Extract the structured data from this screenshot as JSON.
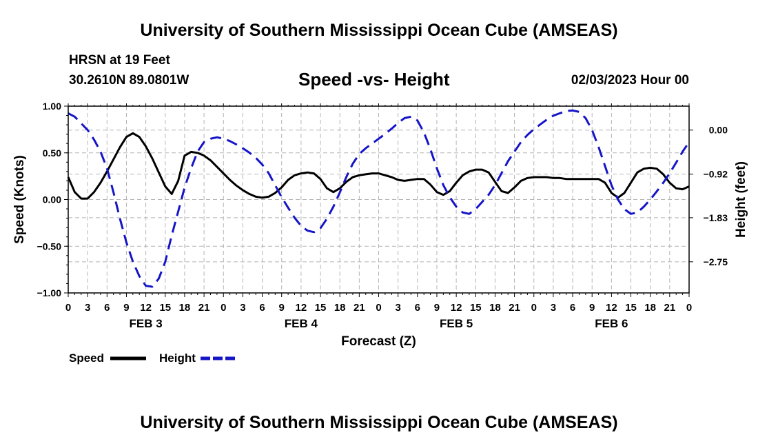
{
  "header": {
    "title": "University of Southern Mississippi Ocean Cube (AMSEAS)",
    "station": "HRSN at 19 Feet",
    "coords": "30.2610N  89.0801W",
    "subtitle": "Speed -vs- Height",
    "run_time": "02/03/2023 Hour 00"
  },
  "footer": {
    "title": "University of Southern Mississippi Ocean Cube (AMSEAS)"
  },
  "chart_data": {
    "type": "line",
    "title": "Speed -vs- Height",
    "xlabel": "Forecast (Z)",
    "ylabel": "Speed (Knots)",
    "y2label": "Height (feet)",
    "x_range": [
      0,
      96
    ],
    "ylim": [
      -1.0,
      1.0
    ],
    "y2lim": [
      -3.4,
      0.5
    ],
    "y_ticks": [
      1.0,
      0.5,
      0.0,
      -0.5,
      -1.0
    ],
    "y_tick_labels": [
      "1.00",
      "0.50",
      "0.00",
      "−0.50",
      "−1.00"
    ],
    "y2_ticks": [
      0.0,
      -0.92,
      -1.83,
      -2.75
    ],
    "y2_tick_labels": [
      "0.00",
      "−0.92",
      "−1.83",
      "−2.75"
    ],
    "x_ticks": [
      0,
      3,
      6,
      9,
      12,
      15,
      18,
      21,
      24,
      27,
      30,
      33,
      36,
      39,
      42,
      45,
      48,
      51,
      54,
      57,
      60,
      63,
      66,
      69,
      72,
      75,
      78,
      81,
      84,
      87,
      90,
      93,
      96
    ],
    "x_tick_labels": [
      "0",
      "3",
      "6",
      "9",
      "12",
      "15",
      "18",
      "21",
      "0",
      "3",
      "6",
      "9",
      "12",
      "15",
      "18",
      "21",
      "0",
      "3",
      "6",
      "9",
      "12",
      "15",
      "18",
      "21",
      "0",
      "3",
      "6",
      "9",
      "12",
      "15",
      "18",
      "21",
      "0"
    ],
    "day_labels": [
      {
        "label": "FEB 3",
        "x": 12
      },
      {
        "label": "FEB 4",
        "x": 36
      },
      {
        "label": "FEB 5",
        "x": 60
      },
      {
        "label": "FEB 6",
        "x": 84
      }
    ],
    "grid": true,
    "legend": "bottom-left",
    "series": [
      {
        "name": "Speed",
        "color": "#000000",
        "style": "solid",
        "axis": "left",
        "x": [
          0,
          1,
          2,
          3,
          4,
          5,
          6,
          7,
          8,
          9,
          10,
          11,
          12,
          13,
          14,
          15,
          16,
          17,
          18,
          19,
          20,
          21,
          22,
          23,
          24,
          25,
          26,
          27,
          28,
          29,
          30,
          31,
          32,
          33,
          34,
          35,
          36,
          37,
          38,
          39,
          40,
          41,
          42,
          43,
          44,
          45,
          46,
          47,
          48,
          49,
          50,
          51,
          52,
          53,
          54,
          55,
          56,
          57,
          58,
          59,
          60,
          61,
          62,
          63,
          64,
          65,
          66,
          67,
          68,
          69,
          70,
          71,
          72,
          73,
          74,
          75,
          76,
          77,
          78,
          79,
          80,
          81,
          82,
          83,
          84,
          85,
          86,
          87,
          88,
          89,
          90,
          91,
          92,
          93,
          94,
          95,
          96
        ],
        "values": [
          0.24,
          0.08,
          0.01,
          0.01,
          0.08,
          0.18,
          0.3,
          0.43,
          0.56,
          0.67,
          0.71,
          0.67,
          0.57,
          0.44,
          0.29,
          0.14,
          0.06,
          0.2,
          0.47,
          0.51,
          0.5,
          0.47,
          0.42,
          0.35,
          0.28,
          0.21,
          0.15,
          0.1,
          0.06,
          0.03,
          0.02,
          0.03,
          0.07,
          0.13,
          0.21,
          0.26,
          0.28,
          0.29,
          0.28,
          0.22,
          0.12,
          0.08,
          0.12,
          0.19,
          0.24,
          0.26,
          0.27,
          0.28,
          0.28,
          0.26,
          0.24,
          0.21,
          0.2,
          0.21,
          0.22,
          0.22,
          0.16,
          0.08,
          0.05,
          0.09,
          0.18,
          0.26,
          0.3,
          0.32,
          0.32,
          0.29,
          0.19,
          0.09,
          0.07,
          0.13,
          0.2,
          0.23,
          0.24,
          0.24,
          0.24,
          0.23,
          0.23,
          0.22,
          0.22,
          0.22,
          0.22,
          0.22,
          0.22,
          0.18,
          0.07,
          0.02,
          0.07,
          0.18,
          0.29,
          0.33,
          0.34,
          0.33,
          0.27,
          0.18,
          0.12,
          0.11,
          0.14
        ]
      },
      {
        "name": "Height",
        "color": "#1515c8",
        "style": "dashed",
        "axis": "right",
        "x": [
          0,
          1,
          2,
          3,
          4,
          5,
          6,
          7,
          8,
          9,
          10,
          11,
          12,
          13,
          14,
          15,
          16,
          17,
          18,
          19,
          20,
          21,
          22,
          23,
          24,
          25,
          26,
          27,
          28,
          29,
          30,
          31,
          32,
          33,
          34,
          35,
          36,
          37,
          38,
          39,
          40,
          41,
          42,
          43,
          44,
          45,
          46,
          47,
          48,
          49,
          50,
          51,
          52,
          53,
          54,
          55,
          56,
          57,
          58,
          59,
          60,
          61,
          62,
          63,
          64,
          65,
          66,
          67,
          68,
          69,
          70,
          71,
          72,
          73,
          74,
          75,
          76,
          77,
          78,
          79,
          80,
          81,
          82,
          83,
          84,
          85,
          86,
          87,
          88,
          89,
          90,
          91,
          92,
          93,
          94,
          95,
          96
        ],
        "values": [
          0.35,
          0.28,
          0.14,
          0.0,
          -0.2,
          -0.45,
          -0.8,
          -1.3,
          -1.85,
          -2.35,
          -2.75,
          -3.05,
          -3.25,
          -3.27,
          -3.1,
          -2.75,
          -2.2,
          -1.7,
          -1.2,
          -0.8,
          -0.45,
          -0.25,
          -0.18,
          -0.15,
          -0.18,
          -0.23,
          -0.3,
          -0.38,
          -0.47,
          -0.58,
          -0.72,
          -0.9,
          -1.15,
          -1.4,
          -1.62,
          -1.83,
          -2.0,
          -2.1,
          -2.13,
          -2.05,
          -1.85,
          -1.6,
          -1.3,
          -0.98,
          -0.7,
          -0.5,
          -0.38,
          -0.28,
          -0.18,
          -0.08,
          0.03,
          0.15,
          0.25,
          0.28,
          0.2,
          -0.05,
          -0.4,
          -0.8,
          -1.15,
          -1.4,
          -1.6,
          -1.72,
          -1.75,
          -1.65,
          -1.5,
          -1.35,
          -1.15,
          -0.9,
          -0.65,
          -0.45,
          -0.25,
          -0.1,
          0.02,
          0.12,
          0.22,
          0.3,
          0.35,
          0.4,
          0.41,
          0.38,
          0.25,
          0.0,
          -0.35,
          -0.75,
          -1.15,
          -1.45,
          -1.65,
          -1.75,
          -1.72,
          -1.6,
          -1.45,
          -1.28,
          -1.1,
          -0.9,
          -0.68,
          -0.45,
          -0.25
        ]
      }
    ],
    "legend_entries": [
      "Speed",
      "Height"
    ]
  }
}
